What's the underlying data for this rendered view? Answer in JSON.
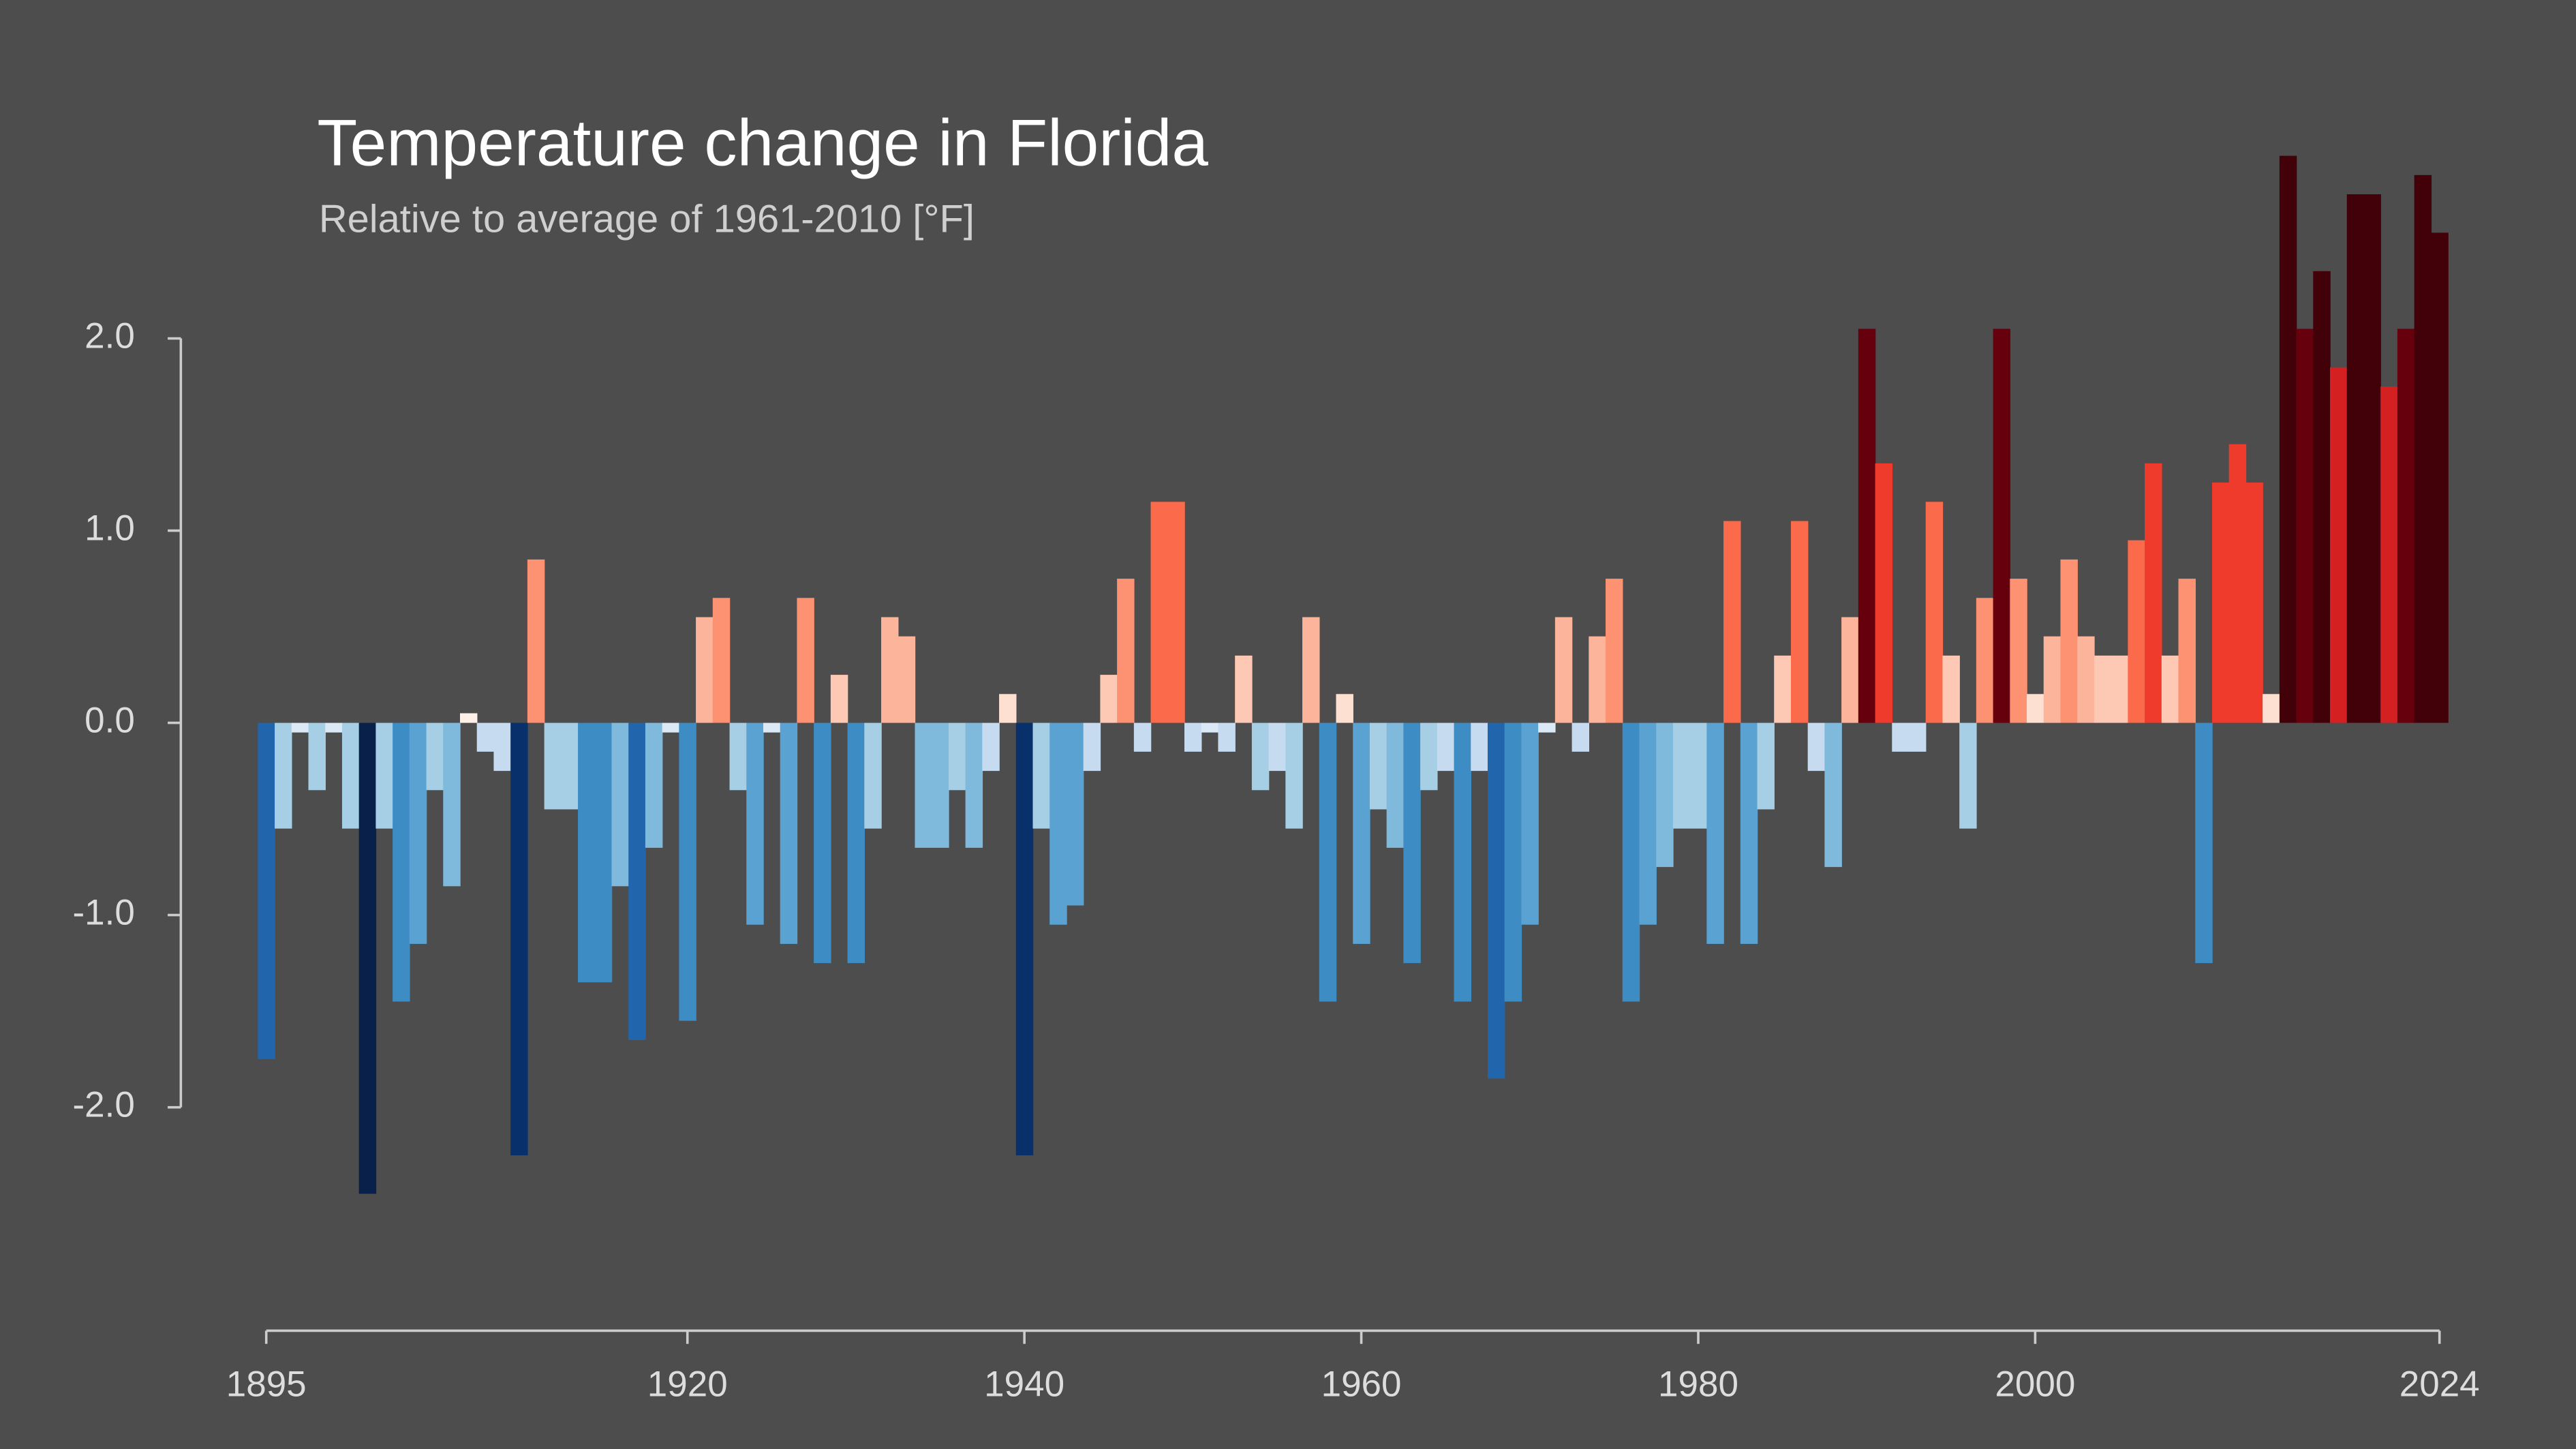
{
  "chart_data": {
    "type": "bar",
    "title": "Temperature change in Florida",
    "subtitle": "Relative to average of 1961-2010  [°F]",
    "x": [
      1895,
      1896,
      1897,
      1898,
      1899,
      1900,
      1901,
      1902,
      1903,
      1904,
      1905,
      1906,
      1907,
      1908,
      1909,
      1910,
      1911,
      1912,
      1913,
      1914,
      1915,
      1916,
      1917,
      1918,
      1919,
      1920,
      1921,
      1922,
      1923,
      1924,
      1925,
      1926,
      1927,
      1928,
      1929,
      1930,
      1931,
      1932,
      1933,
      1934,
      1935,
      1936,
      1937,
      1938,
      1939,
      1940,
      1941,
      1942,
      1943,
      1944,
      1945,
      1946,
      1947,
      1948,
      1949,
      1950,
      1951,
      1952,
      1953,
      1954,
      1955,
      1956,
      1957,
      1958,
      1959,
      1960,
      1961,
      1962,
      1963,
      1964,
      1965,
      1966,
      1967,
      1968,
      1969,
      1970,
      1971,
      1972,
      1973,
      1974,
      1975,
      1976,
      1977,
      1978,
      1979,
      1980,
      1981,
      1982,
      1983,
      1984,
      1985,
      1986,
      1987,
      1988,
      1989,
      1990,
      1991,
      1992,
      1993,
      1994,
      1995,
      1996,
      1997,
      1998,
      1999,
      2000,
      2001,
      2002,
      2003,
      2004,
      2005,
      2006,
      2007,
      2008,
      2009,
      2010,
      2011,
      2012,
      2013,
      2014,
      2015,
      2016,
      2017,
      2018,
      2019,
      2020,
      2021,
      2022,
      2023,
      2024
    ],
    "values": [
      -1.75,
      -0.55,
      -0.05,
      -0.35,
      -0.05,
      -0.55,
      -2.45,
      -0.55,
      -1.45,
      -1.15,
      -0.35,
      -0.85,
      0.05,
      -0.15,
      -0.25,
      -2.25,
      0.85,
      -0.45,
      -0.45,
      -1.35,
      -1.35,
      -0.85,
      -1.65,
      -0.65,
      -0.05,
      -1.55,
      0.55,
      0.65,
      -0.35,
      -1.05,
      -0.05,
      -1.15,
      0.65,
      -1.25,
      0.25,
      -1.25,
      -0.55,
      0.55,
      0.45,
      -0.65,
      -0.65,
      -0.35,
      -0.65,
      -0.25,
      0.15,
      -2.25,
      -0.55,
      -1.05,
      -0.95,
      -0.25,
      0.25,
      0.75,
      -0.15,
      1.15,
      1.15,
      -0.15,
      -0.05,
      -0.15,
      0.35,
      -0.35,
      -0.25,
      -0.55,
      0.55,
      -1.45,
      0.15,
      -1.15,
      -0.45,
      -0.65,
      -1.25,
      -0.35,
      -0.25,
      -1.45,
      -0.25,
      -1.85,
      -1.45,
      -1.05,
      -0.05,
      0.55,
      -0.15,
      0.45,
      0.75,
      -1.45,
      -1.05,
      -0.75,
      -0.55,
      -0.55,
      -1.15,
      1.05,
      -1.15,
      -0.45,
      0.35,
      1.05,
      -0.25,
      -0.75,
      0.55,
      2.05,
      1.35,
      -0.15,
      -0.15,
      1.15,
      0.35,
      -0.55,
      0.65,
      2.05,
      0.75,
      0.15,
      0.45,
      0.85,
      0.45,
      0.35,
      0.35,
      0.95,
      1.35,
      0.35,
      0.75,
      -1.25,
      1.25,
      1.45,
      1.25,
      0.15,
      2.95,
      2.05,
      2.35,
      1.85,
      2.75,
      2.75,
      1.75,
      2.05,
      2.85,
      2.55
    ],
    "colors": [
      "#2166ac",
      "#a6cee4",
      "#dbe9f6",
      "#a6cee4",
      "#dbe9f6",
      "#a6cee4",
      "#08204a",
      "#a6cee4",
      "#3d8dc4",
      "#5aa2d2",
      "#a6cee4",
      "#7fb9dc",
      "#fff0e8",
      "#c6dbef",
      "#c6dbef",
      "#08306b",
      "#fc9272",
      "#a6cee4",
      "#a6cee4",
      "#3d8dc4",
      "#3d8dc4",
      "#7fb9dc",
      "#2166ac",
      "#7fb9dc",
      "#dbe9f6",
      "#3d8dc4",
      "#fcb49a",
      "#fc9272",
      "#a6cee4",
      "#5aa2d2",
      "#dbe9f6",
      "#5aa2d2",
      "#fc9272",
      "#3d8dc4",
      "#fdc9b4",
      "#3d8dc4",
      "#a6cee4",
      "#fcb49a",
      "#fcb49a",
      "#7fb9dc",
      "#7fb9dc",
      "#a6cee4",
      "#7fb9dc",
      "#c6dbef",
      "#fee0d2",
      "#08306b",
      "#a6cee4",
      "#5aa2d2",
      "#5aa2d2",
      "#c6dbef",
      "#fdc9b4",
      "#fc9272",
      "#c6dbef",
      "#fb6a4a",
      "#fb6a4a",
      "#c6dbef",
      "#dbe9f6",
      "#c6dbef",
      "#fdc9b4",
      "#a6cee4",
      "#c6dbef",
      "#a6cee4",
      "#fcb49a",
      "#3d8dc4",
      "#fee0d2",
      "#5aa2d2",
      "#a6cee4",
      "#7fb9dc",
      "#3d8dc4",
      "#a6cee4",
      "#c6dbef",
      "#3d8dc4",
      "#c6dbef",
      "#2166ac",
      "#3d8dc4",
      "#5aa2d2",
      "#dbe9f6",
      "#fcb49a",
      "#c6dbef",
      "#fcb49a",
      "#fc9272",
      "#3d8dc4",
      "#5aa2d2",
      "#7fb9dc",
      "#a6cee4",
      "#a6cee4",
      "#5aa2d2",
      "#fb6a4a",
      "#5aa2d2",
      "#a6cee4",
      "#fdc9b4",
      "#fb6a4a",
      "#c6dbef",
      "#7fb9dc",
      "#fcb49a",
      "#67000d",
      "#ef3b2c",
      "#c6dbef",
      "#c6dbef",
      "#fb6a4a",
      "#fdc9b4",
      "#a6cee4",
      "#fc9272",
      "#67000d",
      "#fc9272",
      "#fee0d2",
      "#fcb49a",
      "#fc9272",
      "#fcb49a",
      "#fdc9b4",
      "#fdc9b4",
      "#fb6a4a",
      "#ef3b2c",
      "#fdc9b4",
      "#fc9272",
      "#3d8dc4",
      "#ef3b2c",
      "#ef3b2c",
      "#ef3b2c",
      "#fee0d2",
      "#420008",
      "#67000d",
      "#420008",
      "#d42020",
      "#420008",
      "#420008",
      "#d42020",
      "#67000d",
      "#420008",
      "#420008"
    ],
    "xlim": [
      1895,
      2024
    ],
    "xticks": [
      1895,
      1920,
      1940,
      1960,
      1980,
      2000,
      2024
    ],
    "ylim": [
      -2.5,
      3
    ],
    "yticks": [
      {
        "value": 2,
        "label": "2.0"
      },
      {
        "value": 1,
        "label": "1.0"
      },
      {
        "value": 0,
        "label": "0.0"
      },
      {
        "value": -1,
        "label": "-1.0"
      },
      {
        "value": -2,
        "label": "-2.0"
      }
    ]
  }
}
